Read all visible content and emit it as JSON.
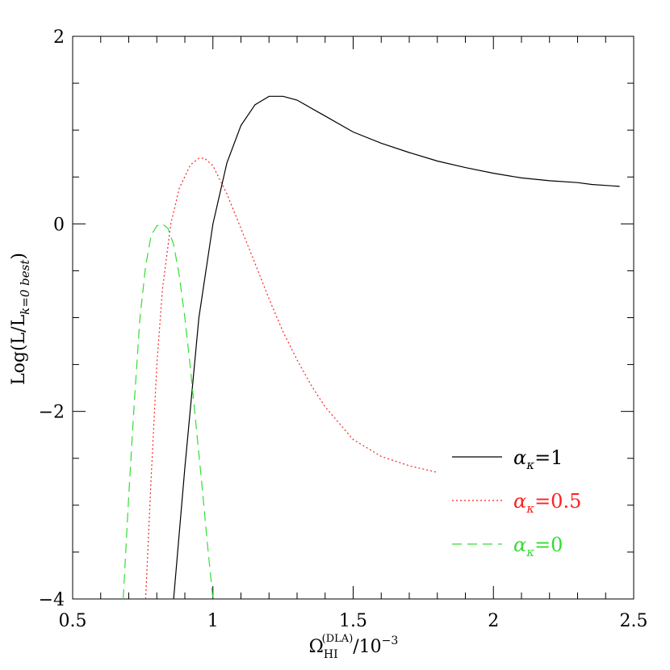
{
  "chart_data": {
    "type": "line",
    "title": "",
    "xlabel": "Ω_HI^(DLA)/10^-3",
    "xlabel_parts": {
      "main": "Ω",
      "sub": "HI",
      "sup": "(DLA)",
      "tail": "/10",
      "tail_sup": "−3"
    },
    "ylabel": "Log(L/L_k=0 best)",
    "ylabel_parts": {
      "main": "Log(L/L",
      "sub": "k=0 best",
      "tail": ")"
    },
    "xlim": [
      0.5,
      2.5
    ],
    "ylim": [
      -4,
      2
    ],
    "x_ticks": [
      0.5,
      1,
      1.5,
      2,
      2.5
    ],
    "x_tick_labels": [
      "0.5",
      "1",
      "1.5",
      "2",
      "2.5"
    ],
    "y_ticks": [
      -4,
      -2,
      0,
      2
    ],
    "y_tick_labels": [
      "−4",
      "−2",
      "0",
      "2"
    ],
    "grid": false,
    "legend_position": "lower-right",
    "series": [
      {
        "name": "α_κ=1",
        "legend": {
          "alpha": "α",
          "kappa": "κ",
          "eq": "=1"
        },
        "color": "#000000",
        "dash": "solid",
        "x": [
          0.86,
          0.9,
          0.95,
          1.0,
          1.05,
          1.1,
          1.15,
          1.2,
          1.25,
          1.3,
          1.4,
          1.5,
          1.6,
          1.7,
          1.8,
          1.9,
          2.0,
          2.1,
          2.2,
          2.3,
          2.35,
          2.4,
          2.45
        ],
        "y": [
          -4.0,
          -2.6,
          -1.0,
          0.0,
          0.65,
          1.05,
          1.27,
          1.36,
          1.36,
          1.32,
          1.15,
          0.98,
          0.86,
          0.76,
          0.67,
          0.6,
          0.54,
          0.49,
          0.46,
          0.44,
          0.42,
          0.41,
          0.4
        ]
      },
      {
        "name": "α_κ=0.5",
        "legend": {
          "alpha": "α",
          "kappa": "κ",
          "eq": "=0.5"
        },
        "color": "#ff2020",
        "dash": "dotted",
        "x": [
          0.76,
          0.78,
          0.8,
          0.82,
          0.85,
          0.88,
          0.92,
          0.95,
          0.97,
          1.0,
          1.05,
          1.1,
          1.15,
          1.2,
          1.25,
          1.3,
          1.35,
          1.4,
          1.5,
          1.6,
          1.7,
          1.8
        ],
        "y": [
          -4.0,
          -2.7,
          -1.5,
          -0.7,
          0.0,
          0.38,
          0.63,
          0.7,
          0.7,
          0.62,
          0.32,
          -0.05,
          -0.42,
          -0.8,
          -1.15,
          -1.45,
          -1.72,
          -1.95,
          -2.3,
          -2.48,
          -2.58,
          -2.65
        ]
      },
      {
        "name": "α_κ=0",
        "legend": {
          "alpha": "α",
          "kappa": "κ",
          "eq": "=0"
        },
        "color": "#33dd33",
        "dash": "dashed",
        "x": [
          0.68,
          0.7,
          0.72,
          0.74,
          0.76,
          0.78,
          0.8,
          0.82,
          0.84,
          0.86,
          0.88,
          0.9,
          0.92,
          0.94,
          0.96,
          0.98,
          1.0
        ],
        "y": [
          -4.0,
          -2.9,
          -1.9,
          -1.0,
          -0.45,
          -0.12,
          -0.02,
          0.0,
          -0.05,
          -0.22,
          -0.55,
          -1.0,
          -1.55,
          -2.15,
          -2.75,
          -3.4,
          -4.0
        ]
      }
    ]
  }
}
